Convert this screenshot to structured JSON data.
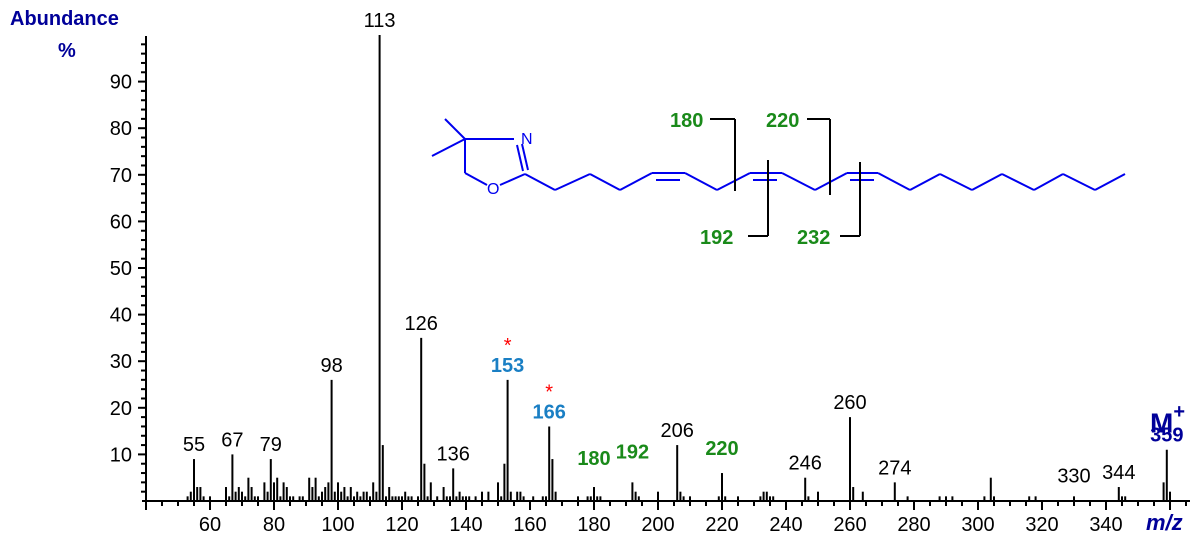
{
  "chart_data": {
    "type": "bar",
    "title": "",
    "xlabel": "m/z",
    "ylabel": "Abundance %",
    "xlim": [
      40,
      365
    ],
    "ylim": [
      0,
      100
    ],
    "grid": false,
    "x_ticks": [
      60,
      80,
      100,
      120,
      140,
      160,
      180,
      200,
      220,
      240,
      260,
      280,
      300,
      320,
      340
    ],
    "y_ticks": [
      10,
      20,
      30,
      40,
      50,
      60,
      70,
      80,
      90
    ],
    "peaks": [
      {
        "mz": 53,
        "abundance": 1
      },
      {
        "mz": 54,
        "abundance": 2
      },
      {
        "mz": 55,
        "abundance": 9
      },
      {
        "mz": 56,
        "abundance": 3
      },
      {
        "mz": 57,
        "abundance": 3
      },
      {
        "mz": 58,
        "abundance": 1
      },
      {
        "mz": 60,
        "abundance": 1
      },
      {
        "mz": 65,
        "abundance": 3
      },
      {
        "mz": 66,
        "abundance": 1
      },
      {
        "mz": 67,
        "abundance": 10
      },
      {
        "mz": 68,
        "abundance": 2
      },
      {
        "mz": 69,
        "abundance": 3
      },
      {
        "mz": 70,
        "abundance": 2
      },
      {
        "mz": 71,
        "abundance": 1
      },
      {
        "mz": 72,
        "abundance": 5
      },
      {
        "mz": 73,
        "abundance": 3
      },
      {
        "mz": 74,
        "abundance": 1
      },
      {
        "mz": 75,
        "abundance": 1
      },
      {
        "mz": 77,
        "abundance": 4
      },
      {
        "mz": 78,
        "abundance": 2
      },
      {
        "mz": 79,
        "abundance": 9
      },
      {
        "mz": 80,
        "abundance": 4
      },
      {
        "mz": 81,
        "abundance": 5
      },
      {
        "mz": 82,
        "abundance": 1
      },
      {
        "mz": 83,
        "abundance": 4
      },
      {
        "mz": 84,
        "abundance": 3
      },
      {
        "mz": 85,
        "abundance": 1
      },
      {
        "mz": 86,
        "abundance": 1
      },
      {
        "mz": 88,
        "abundance": 1
      },
      {
        "mz": 89,
        "abundance": 1
      },
      {
        "mz": 91,
        "abundance": 5
      },
      {
        "mz": 92,
        "abundance": 3
      },
      {
        "mz": 93,
        "abundance": 5
      },
      {
        "mz": 94,
        "abundance": 1
      },
      {
        "mz": 95,
        "abundance": 2
      },
      {
        "mz": 96,
        "abundance": 3
      },
      {
        "mz": 97,
        "abundance": 4
      },
      {
        "mz": 98,
        "abundance": 26
      },
      {
        "mz": 99,
        "abundance": 2
      },
      {
        "mz": 100,
        "abundance": 4
      },
      {
        "mz": 101,
        "abundance": 2
      },
      {
        "mz": 102,
        "abundance": 3
      },
      {
        "mz": 103,
        "abundance": 1
      },
      {
        "mz": 104,
        "abundance": 3
      },
      {
        "mz": 105,
        "abundance": 1
      },
      {
        "mz": 106,
        "abundance": 2
      },
      {
        "mz": 107,
        "abundance": 1
      },
      {
        "mz": 108,
        "abundance": 2
      },
      {
        "mz": 109,
        "abundance": 2
      },
      {
        "mz": 110,
        "abundance": 1
      },
      {
        "mz": 111,
        "abundance": 4
      },
      {
        "mz": 112,
        "abundance": 2
      },
      {
        "mz": 113,
        "abundance": 100
      },
      {
        "mz": 114,
        "abundance": 12
      },
      {
        "mz": 115,
        "abundance": 1
      },
      {
        "mz": 116,
        "abundance": 3
      },
      {
        "mz": 117,
        "abundance": 1
      },
      {
        "mz": 118,
        "abundance": 1
      },
      {
        "mz": 119,
        "abundance": 1
      },
      {
        "mz": 120,
        "abundance": 1
      },
      {
        "mz": 121,
        "abundance": 2
      },
      {
        "mz": 122,
        "abundance": 1
      },
      {
        "mz": 123,
        "abundance": 1
      },
      {
        "mz": 125,
        "abundance": 1
      },
      {
        "mz": 126,
        "abundance": 35
      },
      {
        "mz": 127,
        "abundance": 8
      },
      {
        "mz": 128,
        "abundance": 1
      },
      {
        "mz": 129,
        "abundance": 4
      },
      {
        "mz": 131,
        "abundance": 1
      },
      {
        "mz": 133,
        "abundance": 3
      },
      {
        "mz": 134,
        "abundance": 1
      },
      {
        "mz": 135,
        "abundance": 1
      },
      {
        "mz": 136,
        "abundance": 7
      },
      {
        "mz": 137,
        "abundance": 1
      },
      {
        "mz": 138,
        "abundance": 2
      },
      {
        "mz": 139,
        "abundance": 1
      },
      {
        "mz": 140,
        "abundance": 1
      },
      {
        "mz": 141,
        "abundance": 1
      },
      {
        "mz": 143,
        "abundance": 1
      },
      {
        "mz": 145,
        "abundance": 2
      },
      {
        "mz": 147,
        "abundance": 2
      },
      {
        "mz": 150,
        "abundance": 4
      },
      {
        "mz": 151,
        "abundance": 1
      },
      {
        "mz": 152,
        "abundance": 8
      },
      {
        "mz": 153,
        "abundance": 26
      },
      {
        "mz": 154,
        "abundance": 2
      },
      {
        "mz": 156,
        "abundance": 2
      },
      {
        "mz": 157,
        "abundance": 2
      },
      {
        "mz": 158,
        "abundance": 1
      },
      {
        "mz": 161,
        "abundance": 1
      },
      {
        "mz": 164,
        "abundance": 1
      },
      {
        "mz": 165,
        "abundance": 1
      },
      {
        "mz": 166,
        "abundance": 16
      },
      {
        "mz": 167,
        "abundance": 9
      },
      {
        "mz": 168,
        "abundance": 2
      },
      {
        "mz": 175,
        "abundance": 1
      },
      {
        "mz": 178,
        "abundance": 1
      },
      {
        "mz": 179,
        "abundance": 1
      },
      {
        "mz": 180,
        "abundance": 3
      },
      {
        "mz": 181,
        "abundance": 1
      },
      {
        "mz": 182,
        "abundance": 1
      },
      {
        "mz": 192,
        "abundance": 4
      },
      {
        "mz": 193,
        "abundance": 2
      },
      {
        "mz": 194,
        "abundance": 1
      },
      {
        "mz": 200,
        "abundance": 2
      },
      {
        "mz": 206,
        "abundance": 12
      },
      {
        "mz": 207,
        "abundance": 2
      },
      {
        "mz": 208,
        "abundance": 1
      },
      {
        "mz": 210,
        "abundance": 1
      },
      {
        "mz": 219,
        "abundance": 1
      },
      {
        "mz": 220,
        "abundance": 6
      },
      {
        "mz": 221,
        "abundance": 1
      },
      {
        "mz": 225,
        "abundance": 1
      },
      {
        "mz": 232,
        "abundance": 1
      },
      {
        "mz": 233,
        "abundance": 2
      },
      {
        "mz": 234,
        "abundance": 2
      },
      {
        "mz": 235,
        "abundance": 1
      },
      {
        "mz": 236,
        "abundance": 1
      },
      {
        "mz": 246,
        "abundance": 5
      },
      {
        "mz": 247,
        "abundance": 1
      },
      {
        "mz": 250,
        "abundance": 2
      },
      {
        "mz": 260,
        "abundance": 18
      },
      {
        "mz": 261,
        "abundance": 3
      },
      {
        "mz": 264,
        "abundance": 2
      },
      {
        "mz": 274,
        "abundance": 4
      },
      {
        "mz": 278,
        "abundance": 1
      },
      {
        "mz": 288,
        "abundance": 1
      },
      {
        "mz": 290,
        "abundance": 1
      },
      {
        "mz": 292,
        "abundance": 1
      },
      {
        "mz": 302,
        "abundance": 1
      },
      {
        "mz": 304,
        "abundance": 5
      },
      {
        "mz": 305,
        "abundance": 1
      },
      {
        "mz": 316,
        "abundance": 1
      },
      {
        "mz": 318,
        "abundance": 1
      },
      {
        "mz": 330,
        "abundance": 1
      },
      {
        "mz": 344,
        "abundance": 3
      },
      {
        "mz": 345,
        "abundance": 1
      },
      {
        "mz": 346,
        "abundance": 1
      },
      {
        "mz": 358,
        "abundance": 4
      },
      {
        "mz": 359,
        "abundance": 11
      },
      {
        "mz": 360,
        "abundance": 2
      }
    ],
    "peak_labels": [
      {
        "mz": 55,
        "text": "55",
        "style": "plain"
      },
      {
        "mz": 67,
        "text": "67",
        "style": "plain"
      },
      {
        "mz": 79,
        "text": "79",
        "style": "plain"
      },
      {
        "mz": 98,
        "text": "98",
        "style": "plain"
      },
      {
        "mz": 113,
        "text": "113",
        "style": "plain"
      },
      {
        "mz": 126,
        "text": "126",
        "style": "plain"
      },
      {
        "mz": 136,
        "text": "136",
        "style": "plain"
      },
      {
        "mz": 153,
        "text": "153",
        "style": "diagnostic",
        "asterisk": true
      },
      {
        "mz": 166,
        "text": "166",
        "style": "diagnostic",
        "asterisk": true
      },
      {
        "mz": 180,
        "text": "180",
        "style": "fragment"
      },
      {
        "mz": 192,
        "text": "192",
        "style": "fragment"
      },
      {
        "mz": 206,
        "text": "206",
        "style": "plain"
      },
      {
        "mz": 220,
        "text": "220",
        "style": "fragment"
      },
      {
        "mz": 246,
        "text": "246",
        "style": "plain"
      },
      {
        "mz": 260,
        "text": "260",
        "style": "plain"
      },
      {
        "mz": 274,
        "text": "274",
        "style": "plain"
      },
      {
        "mz": 330,
        "text": "330",
        "style": "plain"
      },
      {
        "mz": 344,
        "text": "344",
        "style": "plain"
      },
      {
        "mz": 359,
        "text": "359",
        "style": "molecular-ion"
      }
    ],
    "annotations": {
      "molecular_ion_label": "M",
      "molecular_ion_charge": "+",
      "structure": {
        "ring_atoms": [
          "N",
          "O"
        ],
        "cleavage_labels_top": [
          "180",
          "220"
        ],
        "cleavage_labels_bottom": [
          "192",
          "232"
        ]
      }
    }
  },
  "axis": {
    "y_title": "Abundance",
    "y_unit": "%",
    "x_title": "m/z"
  },
  "colors": {
    "axis": "#000000",
    "axis_title": "#000099",
    "plain_label": "#000000",
    "diagnostic_label": "#1a7fc4",
    "fragment_label": "#1a8a1a",
    "molecular_ion_label": "#000099",
    "asterisk": "#ff0000",
    "structure": "#0000ee"
  }
}
